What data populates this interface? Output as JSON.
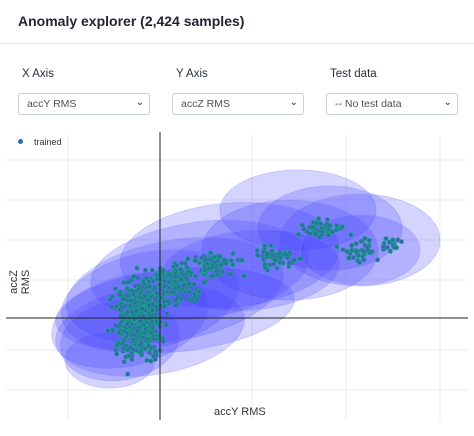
{
  "header": {
    "title": "Anomaly explorer (2,424 samples)"
  },
  "controls": {
    "x_axis": {
      "label": "X Axis",
      "value": "accY RMS"
    },
    "y_axis": {
      "label": "Y Axis",
      "value": "accZ RMS"
    },
    "test_data": {
      "label": "Test data",
      "value": "-- No test data"
    }
  },
  "chart_data": {
    "type": "scatter",
    "xlabel": "accY RMS",
    "ylabel": "accZ RMS",
    "legend": [
      "trained"
    ],
    "legend_position": "top-left",
    "grid": true,
    "colors": {
      "points": "#2e6ea5",
      "point_outline": "#1aa88a",
      "clusters": "#3a3aff"
    }
  }
}
